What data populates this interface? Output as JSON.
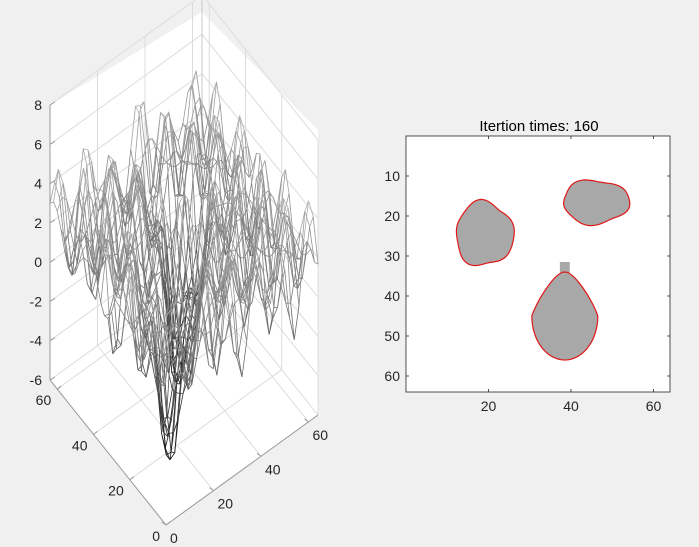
{
  "chart_data": [
    {
      "type": "surface3d",
      "title": "",
      "xlabel": "",
      "ylabel": "",
      "zlabel": "",
      "xlim": [
        0,
        64
      ],
      "ylim": [
        0,
        64
      ],
      "zlim": [
        -6,
        8
      ],
      "x_ticks": [
        "0",
        "20",
        "40",
        "60"
      ],
      "y_ticks": [
        "0",
        "20",
        "40",
        "60"
      ],
      "z_ticks": [
        "8",
        "6",
        "4",
        "2",
        "0",
        "-2",
        "-4",
        "-6"
      ],
      "grid": true,
      "colormap": "gray",
      "description_values": {
        "surface_base_level": 2,
        "wells": [
          {
            "x": 20,
            "y": 24,
            "depth": -7.3
          },
          {
            "x": 39,
            "y": 43,
            "depth": -7.3
          }
        ]
      }
    },
    {
      "type": "image-contour",
      "title": "Itertion times: 160",
      "xlim": [
        0,
        64
      ],
      "ylim": [
        64,
        0
      ],
      "x_ticks": [
        "20",
        "40",
        "60"
      ],
      "y_ticks": [
        "10",
        "20",
        "30",
        "40",
        "50",
        "60"
      ],
      "regions_color": "#a8a8a8",
      "contour_color": "#e01818",
      "regions": [
        {
          "cx": 19,
          "cy": 24.5,
          "rx": 7,
          "ry": 8
        },
        {
          "cx": 46,
          "cy": 16.5,
          "rx": 8,
          "ry": 5.5
        },
        {
          "cx": 38.5,
          "cy": 42,
          "rx": 8,
          "ry": 11
        }
      ]
    }
  ]
}
